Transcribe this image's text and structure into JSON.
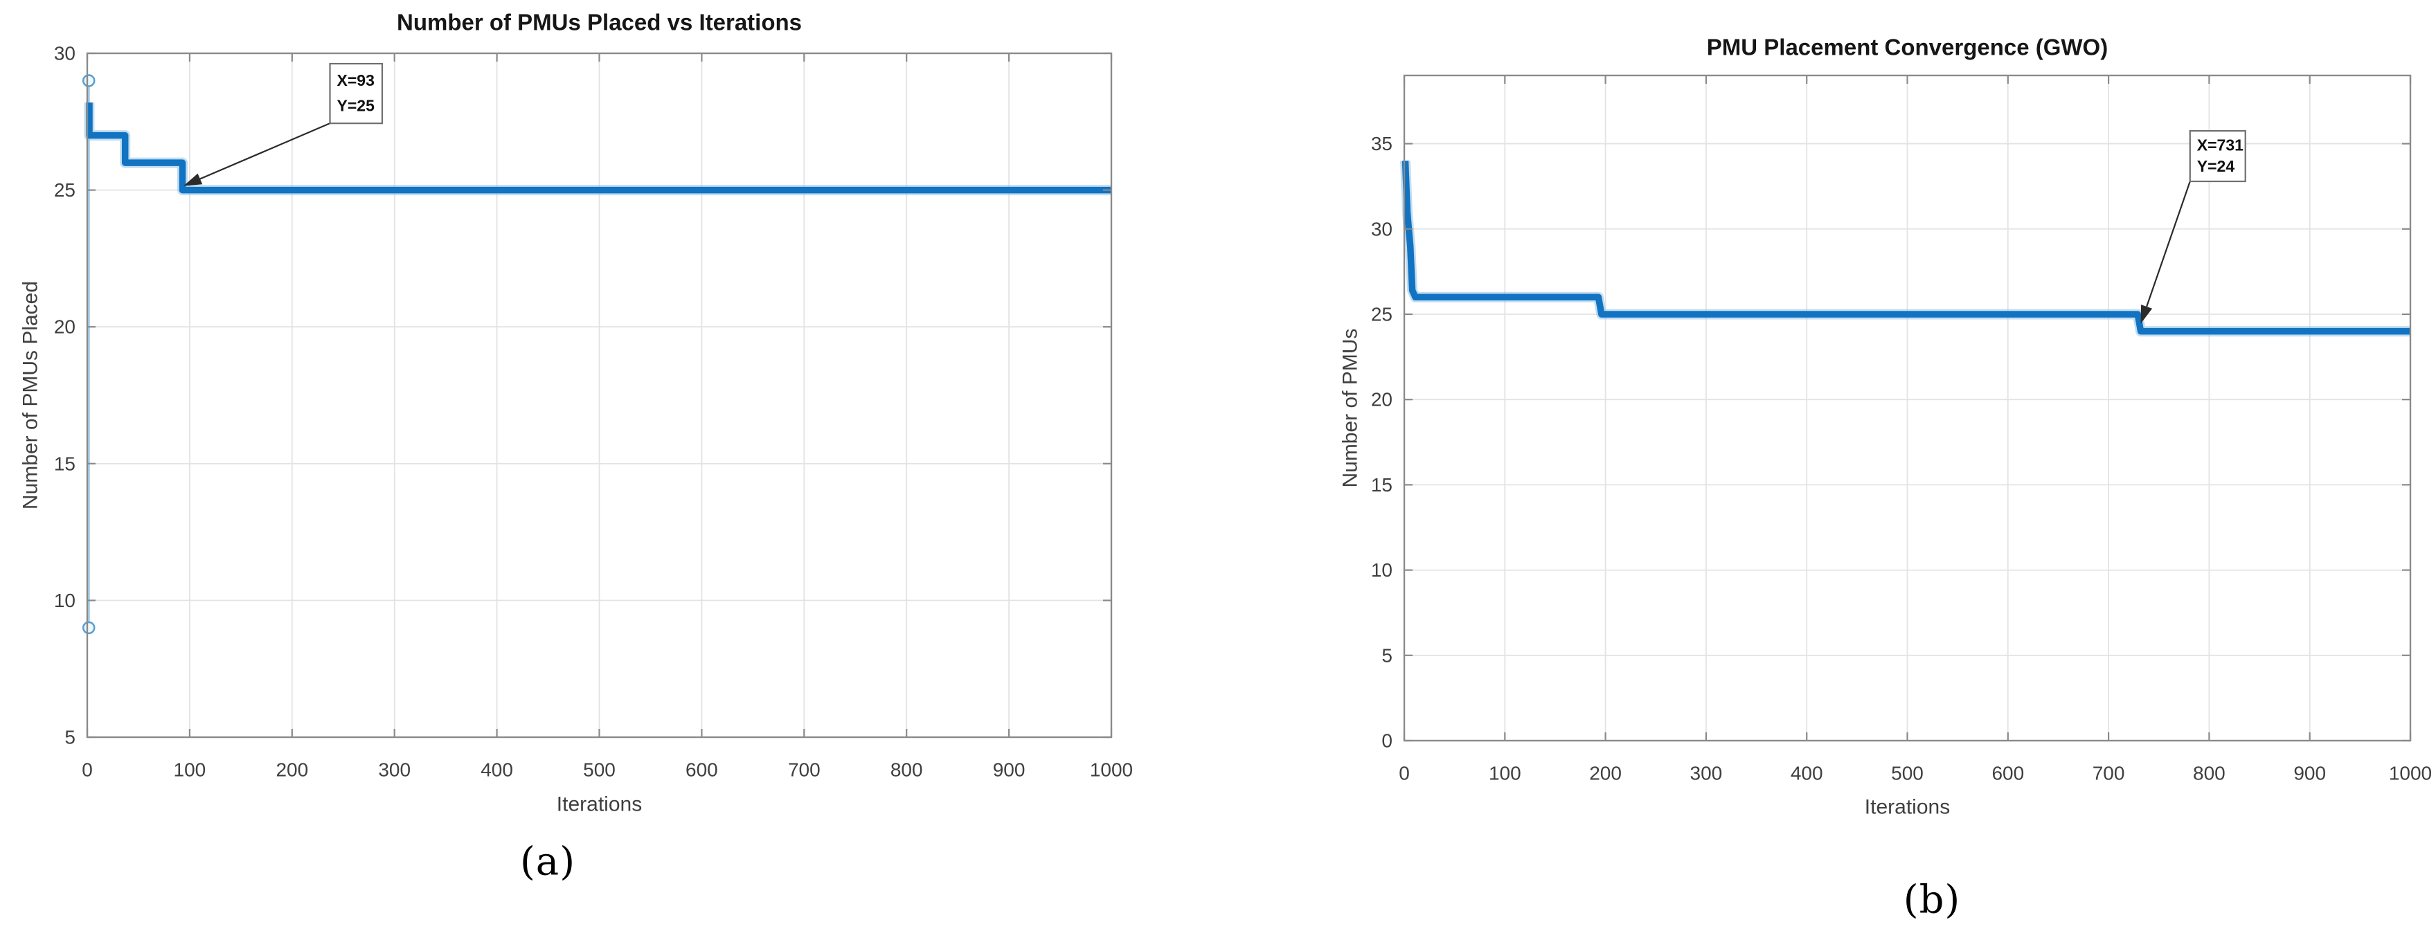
{
  "figure": {
    "background": "#ffffff"
  },
  "colors": {
    "line": "#1173c2",
    "line_halo": "#8fc1e6",
    "thin_line": "#a9cde6",
    "marker": "#58a1cf",
    "marker_fill": "#f2f8fc",
    "grid": "#e3e3e3",
    "axis": "#8a8a8a",
    "tick_label": "#3f3f3f",
    "title": "#161616",
    "annotation_border": "#6f6f6f",
    "annotation_text": "#111111",
    "arrow": "#2b2b2b"
  },
  "chart_data": [
    {
      "type": "line",
      "caption": "(a)",
      "title": "Number of PMUs Placed vs Iterations",
      "xlabel": "Iterations",
      "ylabel": "Number of PMUs Placed",
      "xlim": [
        0,
        1000
      ],
      "ylim": [
        5,
        30
      ],
      "xticks": [
        0,
        100,
        200,
        300,
        400,
        500,
        600,
        700,
        800,
        900,
        1000
      ],
      "yticks": [
        5,
        10,
        15,
        20,
        25,
        30
      ],
      "grid": true,
      "legend": "none",
      "series": [
        {
          "points": [
            [
              2,
              28.2
            ],
            [
              2,
              27
            ],
            [
              37,
              27
            ],
            [
              37,
              26
            ],
            [
              93,
              26
            ],
            [
              93,
              25
            ],
            [
              1000,
              25
            ]
          ]
        }
      ],
      "start_drop": {
        "x": 1.5,
        "from": 29,
        "to": 9
      },
      "markers": [
        [
          1.5,
          29
        ],
        [
          1.5,
          9
        ]
      ],
      "annotation": {
        "lines": [
          "X=93",
          "Y=25"
        ],
        "box": {
          "x": 237,
          "y": 29.62,
          "w": 51,
          "h": 2.18
        },
        "target": {
          "x": 94,
          "y": 25.15
        }
      }
    },
    {
      "type": "line",
      "caption": "(b)",
      "title": "PMU Placement Convergence (GWO)",
      "xlabel": "Iterations",
      "ylabel": "Number of PMUs",
      "xlim": [
        0,
        1000
      ],
      "ylim": [
        0,
        39
      ],
      "xticks": [
        0,
        100,
        200,
        300,
        400,
        500,
        600,
        700,
        800,
        900,
        1000
      ],
      "yticks": [
        0,
        5,
        10,
        15,
        20,
        25,
        30,
        35
      ],
      "grid": true,
      "legend": "none",
      "series": [
        {
          "points": [
            [
              1,
              34
            ],
            [
              3,
              31
            ],
            [
              5,
              29.6
            ],
            [
              6,
              29
            ],
            [
              8,
              26.4
            ],
            [
              11,
              26
            ],
            [
              193,
              26
            ],
            [
              196,
              25
            ],
            [
              729,
              25
            ],
            [
              732,
              24
            ],
            [
              1000,
              24
            ]
          ]
        }
      ],
      "annotation": {
        "lines": [
          "X=731",
          "Y=24"
        ],
        "box": {
          "x": 781,
          "y": 35.75,
          "w": 55,
          "h": 2.96
        },
        "target": {
          "x": 732,
          "y": 24.45
        }
      }
    }
  ]
}
